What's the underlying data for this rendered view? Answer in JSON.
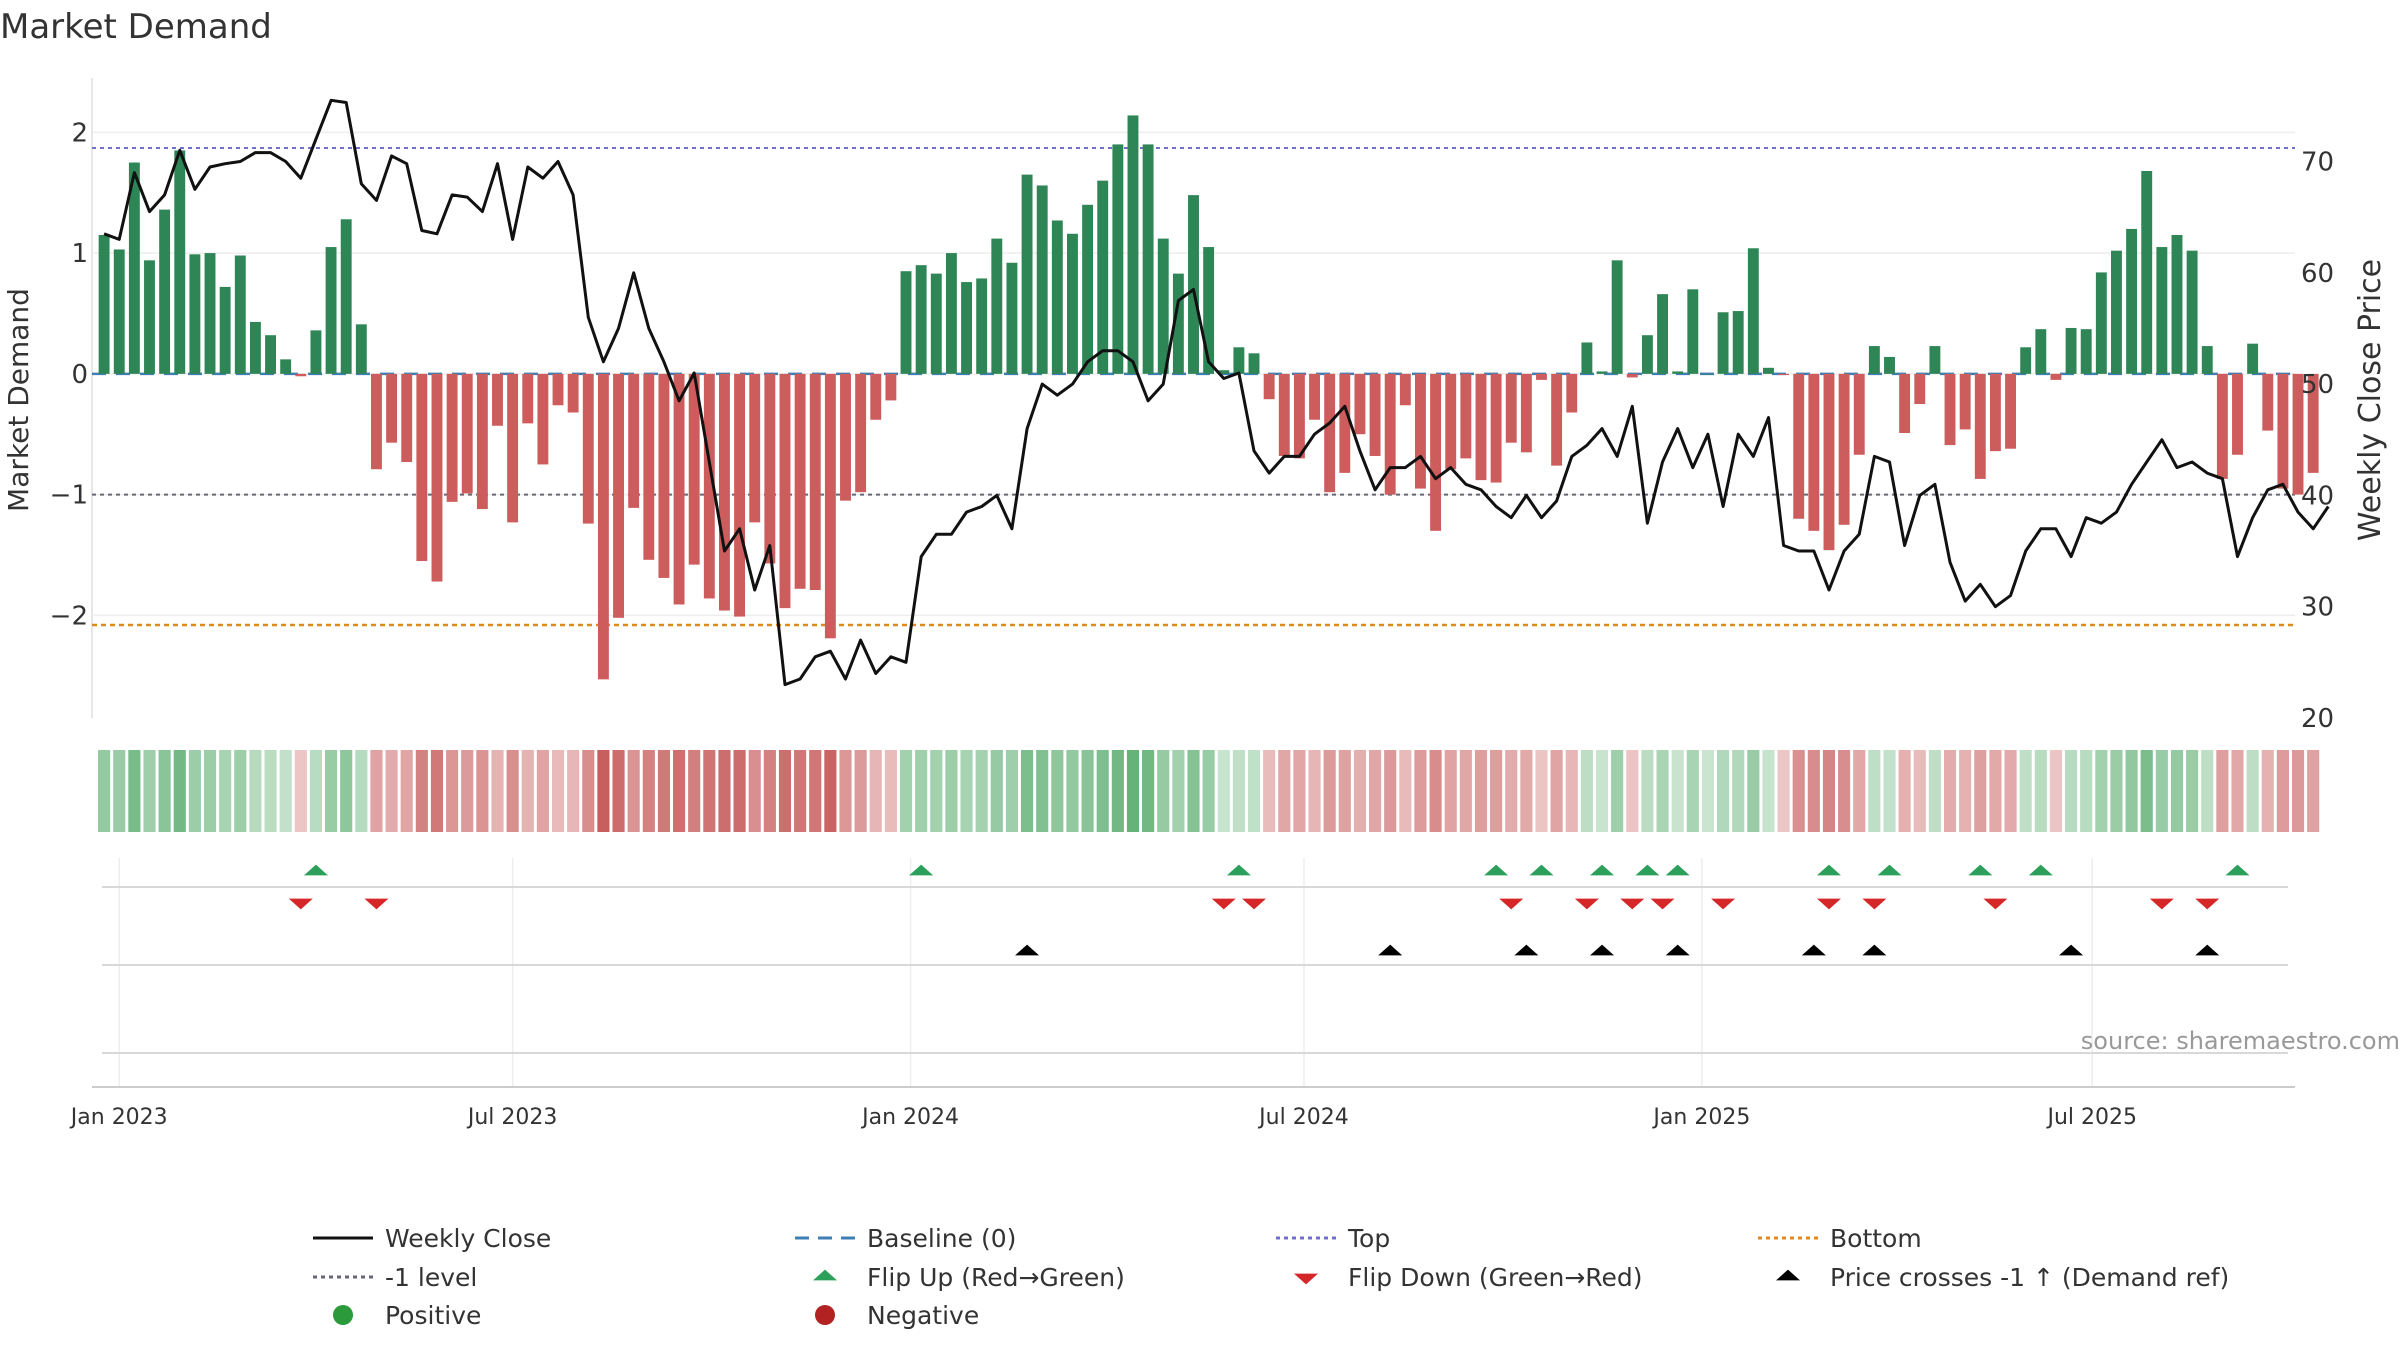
{
  "chart_data": {
    "type": "bar",
    "title": "Market Demand",
    "ylabel": "Market Demand",
    "y2label": "Weekly Close Price",
    "ylim": [
      -2.85,
      2.45
    ],
    "y2lim": [
      20,
      77.5
    ],
    "yticks": [
      2,
      1,
      0,
      -1,
      -2
    ],
    "yticklabels": [
      "2",
      "1",
      "0",
      "−1",
      "−2"
    ],
    "y2ticks": [
      70,
      60,
      50,
      40,
      30,
      20
    ],
    "xlim": [
      -0.8,
      144.8
    ],
    "xticks": [
      {
        "label": "Jan 2023",
        "week": 1
      },
      {
        "label": "Jul 2023",
        "week": 27
      },
      {
        "label": "Jan 2024",
        "week": 53.3
      },
      {
        "label": "Jul 2024",
        "week": 79.3
      },
      {
        "label": "Jan 2025",
        "week": 105.6
      },
      {
        "label": "Jul 2025",
        "week": 131.4
      }
    ],
    "ref_levels": {
      "top": 1.87,
      "minus_one": -1.0,
      "bottom": -2.08,
      "baseline": 0
    },
    "demand": [
      1.15,
      1.03,
      1.75,
      0.94,
      1.36,
      1.85,
      0.99,
      1.0,
      0.72,
      0.98,
      0.43,
      0.32,
      0.12,
      -0.02,
      0.36,
      1.05,
      1.28,
      0.41,
      -0.79,
      -0.57,
      -0.73,
      -1.55,
      -1.72,
      -1.06,
      -0.99,
      -1.12,
      -0.43,
      -1.23,
      -0.41,
      -0.75,
      -0.26,
      -0.32,
      -1.24,
      -2.53,
      -2.02,
      -1.11,
      -1.54,
      -1.69,
      -1.91,
      -1.58,
      -1.86,
      -1.96,
      -2.01,
      -1.23,
      -1.57,
      -1.94,
      -1.78,
      -1.79,
      -2.19,
      -1.05,
      -0.98,
      -0.38,
      -0.22,
      0.85,
      0.9,
      0.83,
      1.0,
      0.76,
      0.79,
      1.12,
      0.92,
      1.65,
      1.56,
      1.27,
      1.16,
      1.4,
      1.6,
      1.9,
      2.14,
      1.9,
      1.12,
      0.83,
      1.48,
      1.05,
      0.03,
      0.22,
      0.17,
      -0.21,
      -0.68,
      -0.7,
      -0.38,
      -0.98,
      -0.82,
      -0.5,
      -0.68,
      -1.0,
      -0.26,
      -0.95,
      -1.3,
      -0.79,
      -0.7,
      -0.88,
      -0.9,
      -0.57,
      -0.65,
      -0.05,
      -0.76,
      -0.32,
      0.26,
      0.02,
      0.94,
      -0.03,
      0.32,
      0.66,
      0.02,
      0.7,
      0.0,
      0.51,
      0.52,
      1.04,
      0.05,
      -0.01,
      -1.2,
      -1.3,
      -1.46,
      -1.25,
      -0.67,
      0.23,
      0.14,
      -0.49,
      -0.25,
      0.23,
      -0.59,
      -0.46,
      -0.87,
      -0.64,
      -0.62,
      0.22,
      0.37,
      -0.05,
      0.38,
      0.37,
      0.84,
      1.02,
      1.2,
      1.68,
      1.05,
      1.15,
      1.02,
      0.23,
      -0.87,
      -0.67,
      0.25,
      -0.47,
      -0.95,
      -1.0,
      -0.82
    ],
    "close": [
      63.5,
      63.0,
      69.0,
      65.5,
      67.0,
      71.0,
      67.5,
      69.5,
      69.8,
      70.0,
      70.8,
      70.8,
      70.0,
      68.5,
      72.0,
      75.5,
      75.3,
      68.0,
      66.5,
      70.5,
      69.8,
      63.8,
      63.5,
      67.0,
      66.8,
      65.5,
      69.8,
      63.0,
      69.5,
      68.5,
      70.0,
      67.0,
      56.0,
      52.0,
      55.0,
      60.0,
      55.0,
      52.0,
      48.5,
      51.0,
      43.0,
      35.0,
      37.0,
      31.5,
      35.5,
      23.0,
      23.5,
      25.5,
      26.0,
      23.5,
      27.0,
      24.0,
      25.5,
      25.0,
      34.5,
      36.5,
      36.5,
      38.5,
      39.0,
      40.0,
      37.0,
      46.0,
      50.0,
      49.0,
      50.0,
      52.0,
      53.0,
      53.0,
      52.0,
      48.5,
      50.0,
      57.5,
      58.5,
      52.0,
      50.5,
      51.0,
      44.0,
      42.0,
      43.5,
      43.5,
      45.5,
      46.5,
      48.0,
      44.0,
      40.5,
      42.5,
      42.5,
      43.5,
      41.5,
      42.5,
      41.0,
      40.5,
      39.0,
      38.0,
      40.0,
      38.0,
      39.5,
      43.5,
      44.5,
      46.0,
      43.5,
      48.0,
      37.5,
      43.0,
      46.0,
      42.5,
      45.5,
      39.0,
      45.5,
      43.5,
      47.0,
      35.5,
      35.0,
      35.0,
      31.5,
      35.0,
      36.5,
      43.5,
      43.0,
      35.5,
      40.0,
      41.0,
      34.0,
      30.5,
      32.0,
      30.0,
      31.0,
      35.0,
      37.0,
      37.0,
      34.5,
      38.0,
      37.5,
      38.5,
      41.0,
      43.0,
      45.0,
      42.5,
      43.0,
      42.0,
      41.5,
      34.5,
      38.0,
      40.5,
      41.0,
      38.5,
      37.0,
      39.0
    ],
    "flip_up": [
      14,
      54,
      75,
      92,
      95,
      99,
      102,
      104,
      114,
      118,
      124,
      128,
      141
    ],
    "flip_down": [
      13,
      18,
      74,
      76,
      93,
      98,
      101,
      103,
      107,
      114,
      117,
      125,
      136,
      139
    ],
    "price_cross": [
      61,
      85,
      94,
      99,
      104,
      113,
      117,
      130,
      139
    ],
    "colors": {
      "pos_bar": "#2e8555",
      "neg_bar": "#cd5c5c",
      "close_line": "#111111",
      "baseline": "#3f7fb5",
      "top": "#7070d0",
      "minus_one": "#666677",
      "bottom": "#e08a1e",
      "flip_up": "#2ca05a",
      "flip_down": "#d62728",
      "cross": "#000000",
      "pos_dot": "#2a9a3a",
      "neg_dot": "#b22222"
    },
    "legend": [
      {
        "label": "Weekly Close",
        "kind": "line-solid",
        "color": "#111111"
      },
      {
        "label": "Baseline (0)",
        "kind": "line-dash",
        "color": "#3f7fb5"
      },
      {
        "label": "Top",
        "kind": "line-dot",
        "color": "#7070d0"
      },
      {
        "label": "Bottom",
        "kind": "line-dot",
        "color": "#e08a1e"
      },
      {
        "label": "-1 level",
        "kind": "line-dot",
        "color": "#666677"
      },
      {
        "label": "Flip Up (Red→Green)",
        "kind": "tri-up",
        "color": "#2ca05a"
      },
      {
        "label": "Flip Down (Green→Red)",
        "kind": "tri-down",
        "color": "#d62728"
      },
      {
        "label": "Price crosses -1 ↑ (Demand ref)",
        "kind": "tri-up",
        "color": "#000000"
      },
      {
        "label": "Positive",
        "kind": "dot",
        "color": "#2a9a3a"
      },
      {
        "label": "Negative",
        "kind": "dot",
        "color": "#b22222"
      }
    ],
    "source": "source: sharemaestro.com"
  }
}
